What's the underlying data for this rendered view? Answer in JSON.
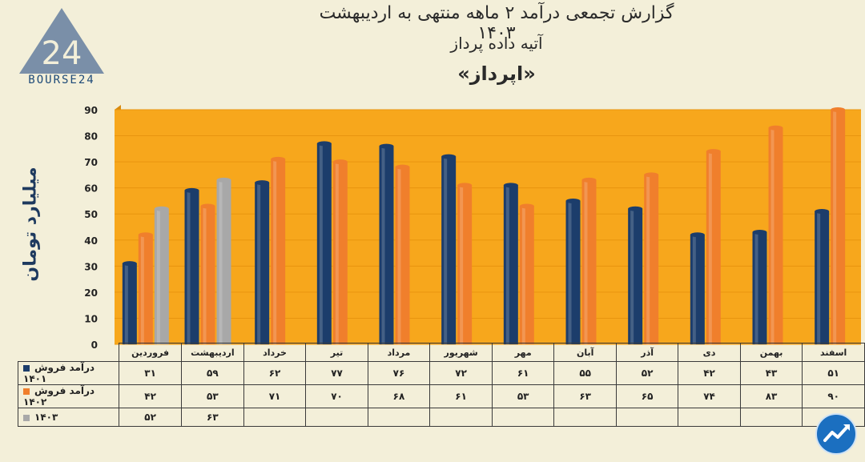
{
  "title_line1": "گزارش تجمعی درآمد ۲ ماهه منتهی به اردیبهشت ۱۴۰۳",
  "title_line2": "آتیه داده پرداز",
  "title_line3": "«اپرداز»",
  "logo_text": "BOURSE24",
  "logo_mark": "24",
  "chart_data": {
    "type": "bar",
    "title": "گزارش تجمعی درآمد ۲ ماهه منتهی به اردیبهشت ۱۴۰۳",
    "ylabel": "میلیارد تومان",
    "ylim": [
      0,
      90
    ],
    "yticks": [
      "0",
      "10",
      "20",
      "30",
      "40",
      "50",
      "60",
      "70",
      "80",
      "90"
    ],
    "categories": [
      "فروردین",
      "اردیبهشت",
      "خرداد",
      "تیر",
      "مرداد",
      "شهریور",
      "مهر",
      "آبان",
      "آذر",
      "دی",
      "بهمن",
      "اسفند"
    ],
    "series": [
      {
        "name": "درآمد فروش ۱۴۰۱",
        "color": "#1c3d6b",
        "values": [
          31,
          59,
          62,
          77,
          76,
          72,
          61,
          55,
          52,
          42,
          43,
          51
        ],
        "labels": [
          "۳۱",
          "۵۹",
          "۶۲",
          "۷۷",
          "۷۶",
          "۷۲",
          "۶۱",
          "۵۵",
          "۵۲",
          "۴۲",
          "۴۳",
          "۵۱"
        ]
      },
      {
        "name": "درآمد فروش ۱۴۰۲",
        "color": "#f07f2c",
        "values": [
          42,
          53,
          71,
          70,
          68,
          61,
          53,
          63,
          65,
          74,
          83,
          90
        ],
        "labels": [
          "۴۲",
          "۵۳",
          "۷۱",
          "۷۰",
          "۶۸",
          "۶۱",
          "۵۳",
          "۶۳",
          "۶۵",
          "۷۴",
          "۸۳",
          "۹۰"
        ]
      },
      {
        "name": "۱۴۰۳",
        "color": "#a8a8a8",
        "values": [
          52,
          63,
          null,
          null,
          null,
          null,
          null,
          null,
          null,
          null,
          null,
          null
        ],
        "labels": [
          "۵۲",
          "۶۳",
          "",
          "",
          "",
          "",
          "",
          "",
          "",
          "",
          "",
          ""
        ]
      }
    ],
    "grid": true,
    "legend": "table-bottom",
    "background_color": "#f7a71c"
  }
}
